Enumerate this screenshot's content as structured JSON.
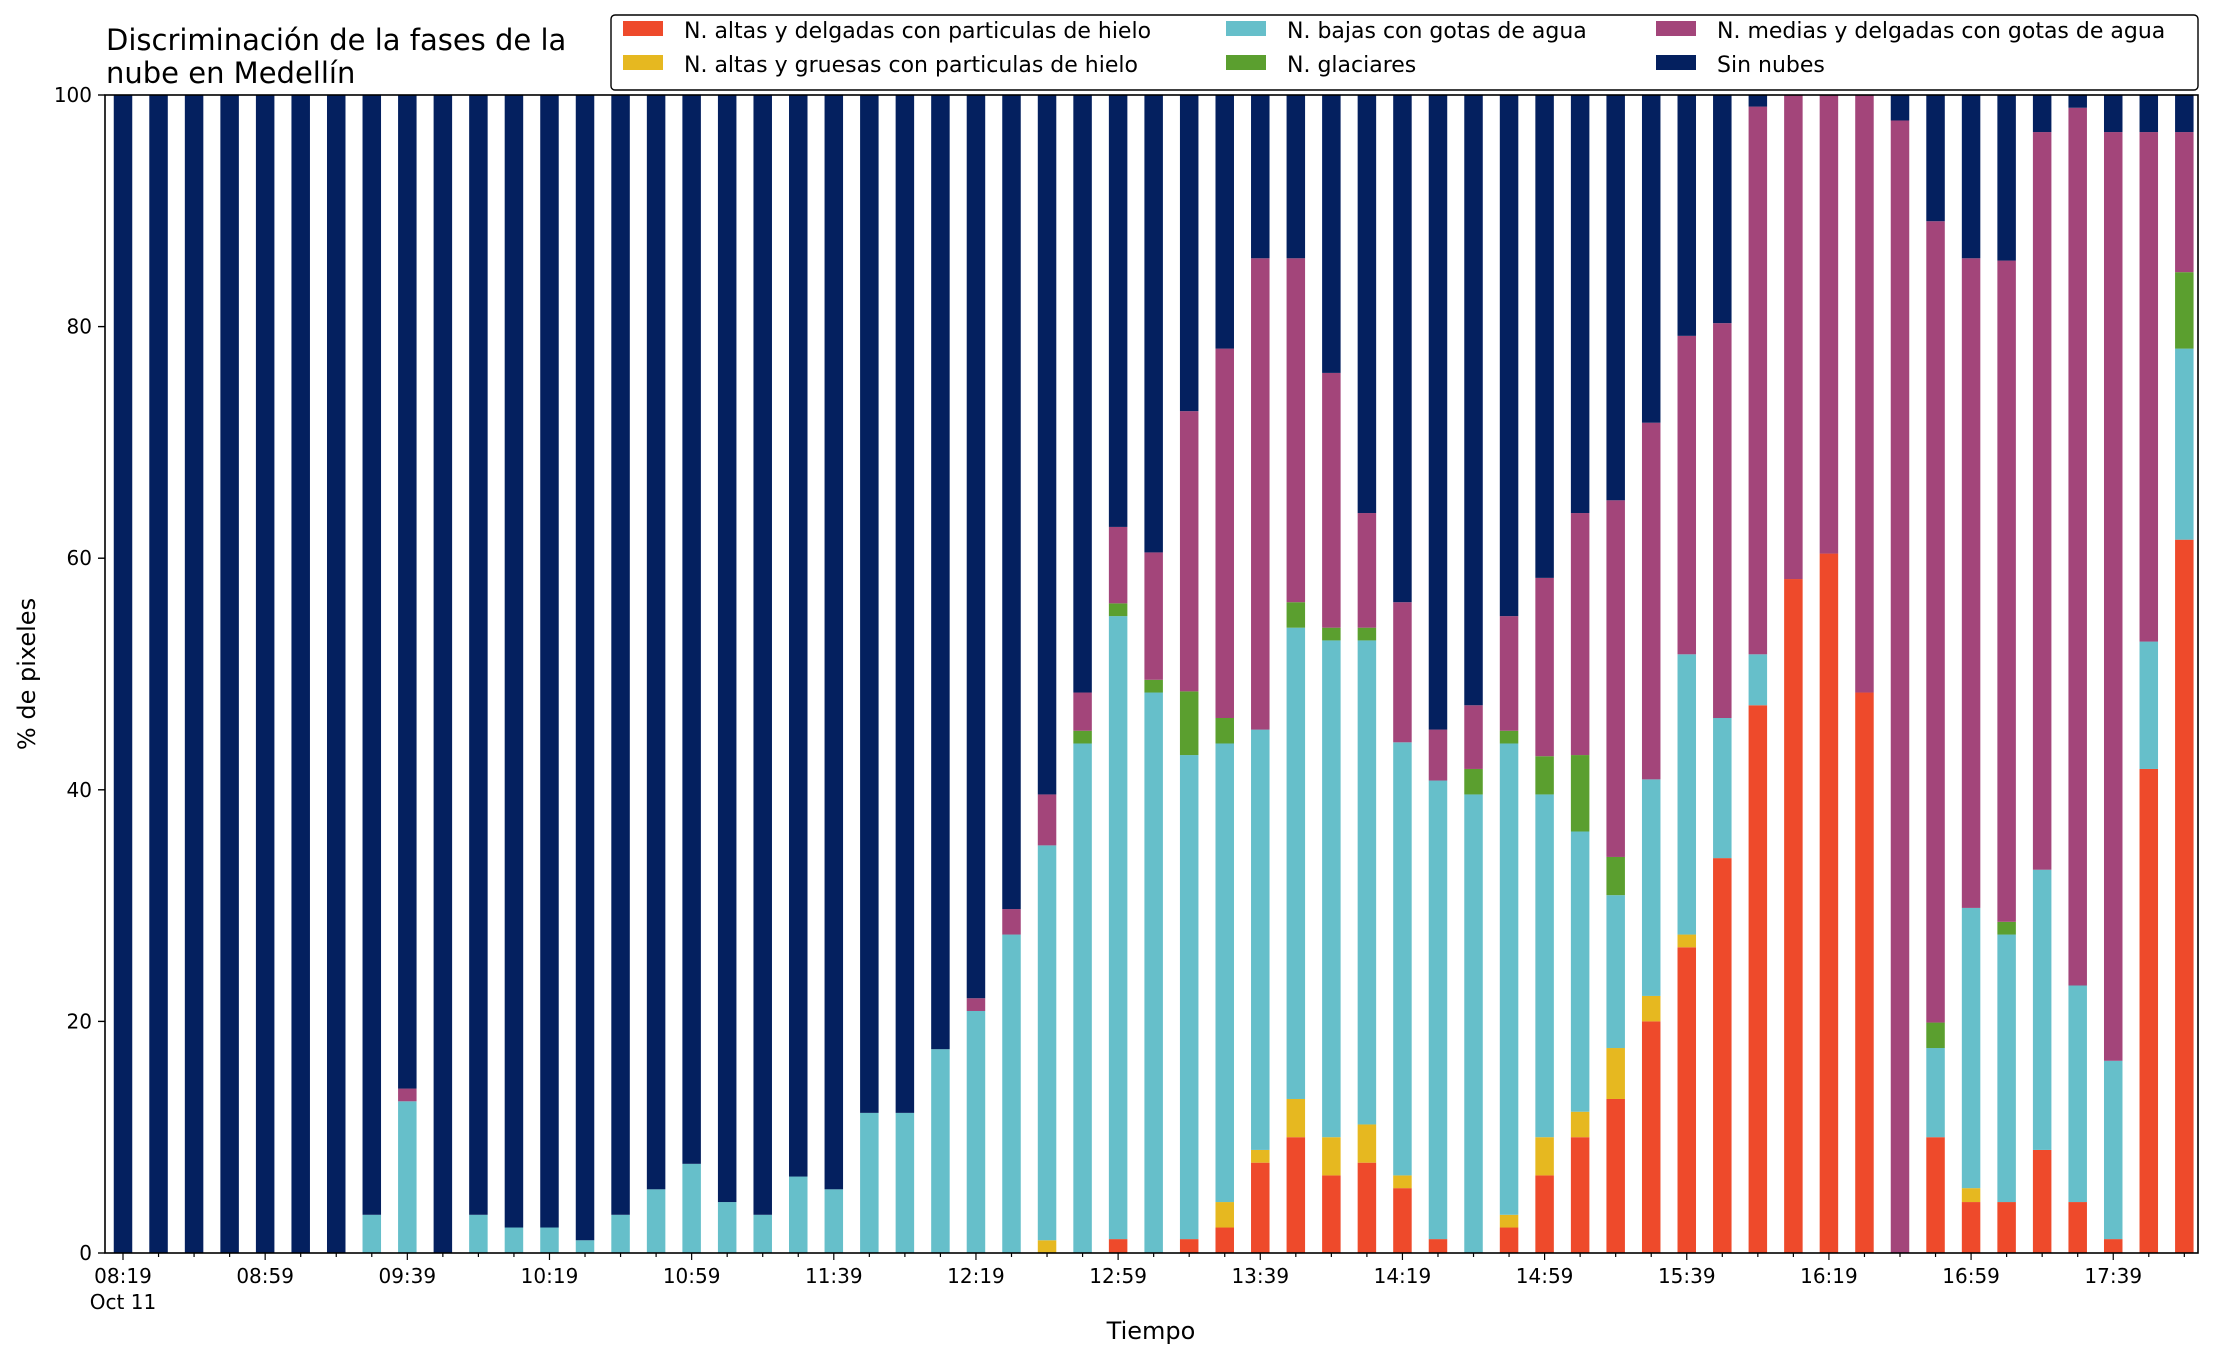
{
  "chart_data": {
    "type": "bar",
    "stacked": true,
    "title": "Discriminación de la fases de la\nnube en Medellín",
    "xlabel": "Tiempo",
    "ylabel": "% de pixeles",
    "ylim": [
      0,
      100
    ],
    "y_ticks": [
      0,
      20,
      40,
      60,
      80,
      100
    ],
    "x_tick_labels": [
      {
        "index": 0,
        "label": "08:19",
        "sublabel": "Oct 11"
      },
      {
        "index": 4,
        "label": "08:59"
      },
      {
        "index": 8,
        "label": "09:39"
      },
      {
        "index": 12,
        "label": "10:19"
      },
      {
        "index": 16,
        "label": "10:59"
      },
      {
        "index": 20,
        "label": "11:39"
      },
      {
        "index": 24,
        "label": "12:19"
      },
      {
        "index": 28,
        "label": "12:59"
      },
      {
        "index": 32,
        "label": "13:39"
      },
      {
        "index": 36,
        "label": "14:19"
      },
      {
        "index": 40,
        "label": "14:59"
      },
      {
        "index": 44,
        "label": "15:39"
      },
      {
        "index": 48,
        "label": "16:19"
      },
      {
        "index": 52,
        "label": "16:59"
      },
      {
        "index": 56,
        "label": "17:39"
      }
    ],
    "legend": {
      "placement": "top-right",
      "columns": 3
    },
    "series": [
      {
        "name": "N. altas y delgadas con particulas de hielo",
        "color": "#ee4a2b",
        "values": [
          0,
          0,
          0,
          0,
          0,
          0,
          0,
          0,
          0,
          0,
          0,
          0,
          0,
          0,
          0,
          0,
          0,
          0,
          0,
          0,
          0,
          0,
          0,
          0,
          0,
          0,
          0,
          0,
          1.2,
          0,
          1.2,
          2.2,
          7.8,
          10,
          6.7,
          7.8,
          5.6,
          1.2,
          0,
          2.2,
          6.7,
          10,
          13.3,
          20,
          26.4,
          34.1,
          47.3,
          58.2,
          60.4,
          48.4,
          0,
          10,
          4.4,
          4.4,
          8.9,
          4.4,
          1.2,
          41.8,
          61.6
        ]
      },
      {
        "name": "N. altas y gruesas con particulas de hielo",
        "color": "#e6b820",
        "values": [
          0,
          0,
          0,
          0,
          0,
          0,
          0,
          0,
          0,
          0,
          0,
          0,
          0,
          0,
          0,
          0,
          0,
          0,
          0,
          0,
          0,
          0,
          0,
          0,
          0,
          0,
          1.1,
          0,
          0,
          0,
          0,
          2.2,
          1.1,
          3.3,
          3.3,
          3.3,
          1.1,
          0,
          0,
          1.1,
          3.3,
          2.2,
          4.4,
          2.2,
          1.1,
          0,
          0,
          0,
          0,
          0,
          0,
          0,
          1.2,
          0,
          0,
          0,
          0,
          0,
          0
        ]
      },
      {
        "name": "N. bajas con gotas de agua",
        "color": "#66bfca",
        "values": [
          0,
          0,
          0,
          0,
          0,
          0,
          0,
          3.3,
          13.1,
          0,
          3.3,
          2.2,
          2.2,
          1.1,
          3.3,
          5.5,
          7.7,
          4.4,
          3.3,
          6.6,
          5.5,
          12.1,
          12.1,
          17.6,
          20.9,
          27.5,
          34.1,
          44,
          53.8,
          48.4,
          41.8,
          39.6,
          36.3,
          40.7,
          42.9,
          41.8,
          37.4,
          39.6,
          39.6,
          40.7,
          29.6,
          24.2,
          13.2,
          18.7,
          24.2,
          12.1,
          4.4,
          0,
          0,
          0,
          0,
          7.7,
          24.2,
          23.1,
          24.2,
          18.7,
          15.4,
          11,
          16.5
        ]
      },
      {
        "name": "N. glaciares",
        "color": "#5b9f2f",
        "values": [
          0,
          0,
          0,
          0,
          0,
          0,
          0,
          0,
          0,
          0,
          0,
          0,
          0,
          0,
          0,
          0,
          0,
          0,
          0,
          0,
          0,
          0,
          0,
          0,
          0,
          0,
          0,
          1.1,
          1.1,
          1.1,
          5.5,
          2.2,
          0,
          2.2,
          1.1,
          1.1,
          0,
          0,
          2.2,
          1.1,
          3.3,
          6.6,
          3.3,
          0,
          0,
          0,
          0,
          0,
          0,
          0,
          0,
          2.2,
          0,
          1.1,
          0,
          0,
          0,
          0,
          6.6
        ]
      },
      {
        "name": "N. medias y delgadas con gotas de agua",
        "color": "#a3457a",
        "values": [
          0,
          0,
          0,
          0,
          0,
          0,
          0,
          0,
          1.1,
          0,
          0,
          0,
          0,
          0,
          0,
          0,
          0,
          0,
          0,
          0,
          0,
          0,
          0,
          0,
          1.1,
          2.2,
          4.4,
          3.3,
          6.6,
          11,
          24.2,
          31.9,
          40.7,
          29.7,
          22,
          9.9,
          12.1,
          4.4,
          5.5,
          9.9,
          15.4,
          20.9,
          30.8,
          30.8,
          27.5,
          34.1,
          47.3,
          41.8,
          39.6,
          51.6,
          97.8,
          69.2,
          56.1,
          57.1,
          63.7,
          75.8,
          80.2,
          44,
          12.1
        ]
      },
      {
        "name": "Sin nubes",
        "color": "#04205f",
        "values": [
          100,
          100,
          100,
          100,
          100,
          100,
          100,
          96.7,
          85.8,
          100,
          96.7,
          97.8,
          97.8,
          98.9,
          96.7,
          94.5,
          92.3,
          95.6,
          96.7,
          93.4,
          94.5,
          87.9,
          87.9,
          82.4,
          78,
          70.3,
          60.4,
          51.6,
          37.3,
          39.5,
          27.3,
          21.9,
          14.4,
          14.1,
          24.2,
          36.2,
          43.9,
          54.8,
          52.7,
          45.1,
          41.8,
          36.3,
          35,
          28.6,
          20.8,
          19.8,
          1,
          0,
          0,
          0,
          2.2,
          11,
          14.1,
          14.3,
          3.2,
          1.1,
          3.2,
          3.2,
          3.2
        ]
      }
    ]
  }
}
